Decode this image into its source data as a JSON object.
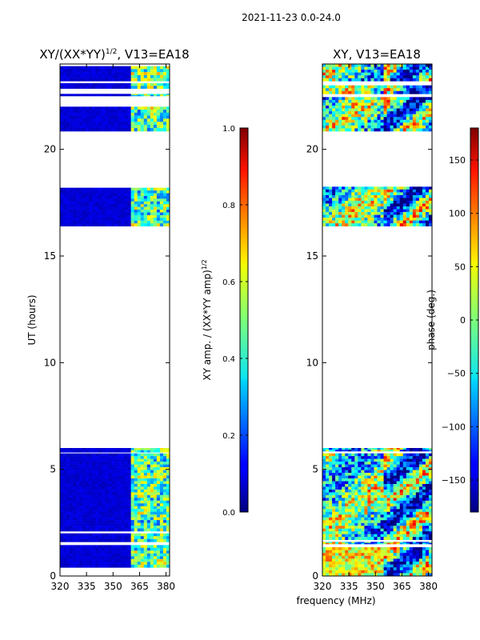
{
  "figure": {
    "suptitle": "2021-11-23 0.0-24.0",
    "shared_xlabel": "frequency (MHz)"
  },
  "chart_data": [
    {
      "type": "heatmap",
      "title": "XY/(XX*YY)",
      "title_sup": "1/2",
      "title_suffix": ", V13=EA18",
      "ylabel": "UT (hours)",
      "xlim": [
        320,
        382
      ],
      "ylim": [
        0,
        24
      ],
      "x_ticks": [
        320,
        335,
        350,
        365,
        380
      ],
      "y_ticks": [
        0,
        5,
        10,
        15,
        20
      ],
      "data_bands_hours": [
        [
          0.4,
          1.45
        ],
        [
          1.6,
          2.0
        ],
        [
          2.1,
          5.75
        ],
        [
          5.8,
          6.0
        ],
        [
          16.4,
          18.2
        ],
        [
          20.85,
          21.3
        ],
        [
          21.3,
          22.0
        ],
        [
          22.5,
          22.6
        ],
        [
          22.85,
          23.1
        ],
        [
          23.2,
          23.9
        ]
      ],
      "colorbar": {
        "label": "XY amp. / (XX*YY amp)",
        "label_sup": "1/2",
        "colormap": "jet",
        "range": [
          0.0,
          1.0
        ],
        "ticks": [
          "0.0",
          "0.2",
          "0.4",
          "0.6",
          "0.8",
          "1.0"
        ]
      }
    },
    {
      "type": "heatmap",
      "title": "XY, V13=EA18",
      "ylabel": "",
      "xlim": [
        320,
        382
      ],
      "ylim": [
        0,
        24
      ],
      "x_ticks": [
        320,
        335,
        350,
        365,
        380
      ],
      "y_ticks": [
        0,
        5,
        10,
        15,
        20
      ],
      "data_bands_hours": [
        [
          0.0,
          1.35
        ],
        [
          1.5,
          1.6
        ],
        [
          1.7,
          5.75
        ],
        [
          5.85,
          6.0
        ],
        [
          16.4,
          18.25
        ],
        [
          20.85,
          22.45
        ],
        [
          22.6,
          23.0
        ],
        [
          23.2,
          24.0
        ]
      ],
      "colorbar": {
        "label": "phase (deg.)",
        "colormap": "jet",
        "range": [
          -180,
          180
        ],
        "ticks": [
          "150",
          "100",
          "50",
          "0",
          "−50",
          "−100",
          "−150"
        ]
      }
    }
  ]
}
